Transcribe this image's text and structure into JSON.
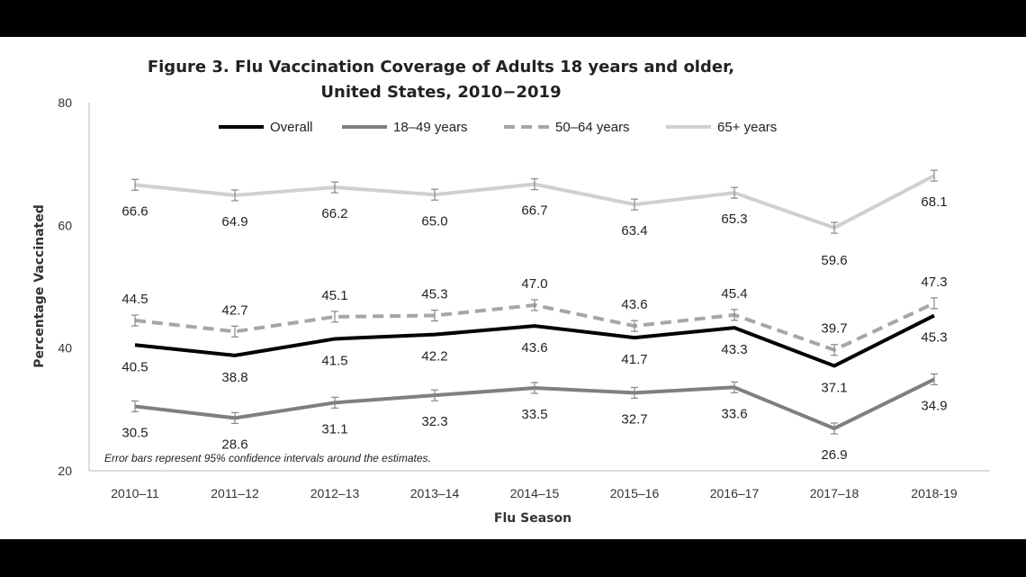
{
  "chart_data": {
    "type": "line",
    "title_line1": "Figure 3. Flu Vaccination Coverage of Adults 18 years and older,",
    "title_line2": "United States, 2010−2019",
    "xlabel": "Flu Season",
    "ylabel": "Percentage Vaccinated",
    "ylim": [
      20,
      80
    ],
    "yticks": [
      "20",
      "40",
      "60",
      "80"
    ],
    "categories": [
      "2010–11",
      "2011–12",
      "2012–13",
      "2013–14",
      "2014–15",
      "2015–16",
      "2016–17",
      "2017–18",
      "2018-19"
    ],
    "legend_position": "top",
    "note": "Error bars represent 95% confidence  intervals  around  the  estimates.",
    "series": [
      {
        "name": "Overall",
        "color": "#000000",
        "dash": "solid",
        "error_bars": false,
        "values": [
          40.5,
          38.8,
          41.5,
          42.2,
          43.6,
          41.7,
          43.3,
          37.1,
          45.3
        ]
      },
      {
        "name": "18–49 years",
        "color": "#7f7f7f",
        "dash": "solid",
        "error_bars": true,
        "values": [
          30.5,
          28.6,
          31.1,
          32.3,
          33.5,
          32.7,
          33.6,
          26.9,
          34.9
        ]
      },
      {
        "name": "50–64 years",
        "color": "#a6a6a6",
        "dash": "dashed",
        "error_bars": true,
        "values": [
          44.5,
          42.7,
          45.1,
          45.3,
          47.0,
          43.6,
          45.4,
          39.7,
          47.3
        ]
      },
      {
        "name": "65+ years",
        "color": "#d0d0d0",
        "dash": "solid",
        "error_bars": true,
        "values": [
          66.6,
          64.9,
          66.2,
          65.0,
          66.7,
          63.4,
          65.3,
          59.6,
          68.1
        ]
      }
    ]
  }
}
